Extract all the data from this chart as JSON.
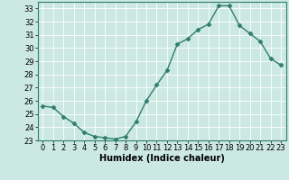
{
  "x": [
    0,
    1,
    2,
    3,
    4,
    5,
    6,
    7,
    8,
    9,
    10,
    11,
    12,
    13,
    14,
    15,
    16,
    17,
    18,
    19,
    20,
    21,
    22,
    23
  ],
  "y": [
    25.6,
    25.5,
    24.8,
    24.3,
    23.6,
    23.3,
    23.2,
    23.1,
    23.3,
    24.4,
    26.0,
    27.2,
    28.3,
    30.3,
    30.7,
    31.4,
    31.8,
    33.2,
    33.2,
    31.7,
    31.1,
    30.5,
    29.2,
    28.7
  ],
  "line_color": "#2e7d6e",
  "marker": "D",
  "markersize": 2.5,
  "linewidth": 1.0,
  "xlabel": "Humidex (Indice chaleur)",
  "xlabel_fontsize": 7,
  "ylabel_fontsize": 6,
  "tick_fontsize": 6,
  "ylim": [
    23,
    33.5
  ],
  "xlim": [
    -0.5,
    23.5
  ],
  "yticks": [
    23,
    24,
    25,
    26,
    27,
    28,
    29,
    30,
    31,
    32,
    33
  ],
  "xticks": [
    0,
    1,
    2,
    3,
    4,
    5,
    6,
    7,
    8,
    9,
    10,
    11,
    12,
    13,
    14,
    15,
    16,
    17,
    18,
    19,
    20,
    21,
    22,
    23
  ],
  "background_color": "#cce8e3",
  "grid_color": "#ffffff",
  "grid_linewidth": 0.6,
  "spine_color": "#2e7d6e"
}
